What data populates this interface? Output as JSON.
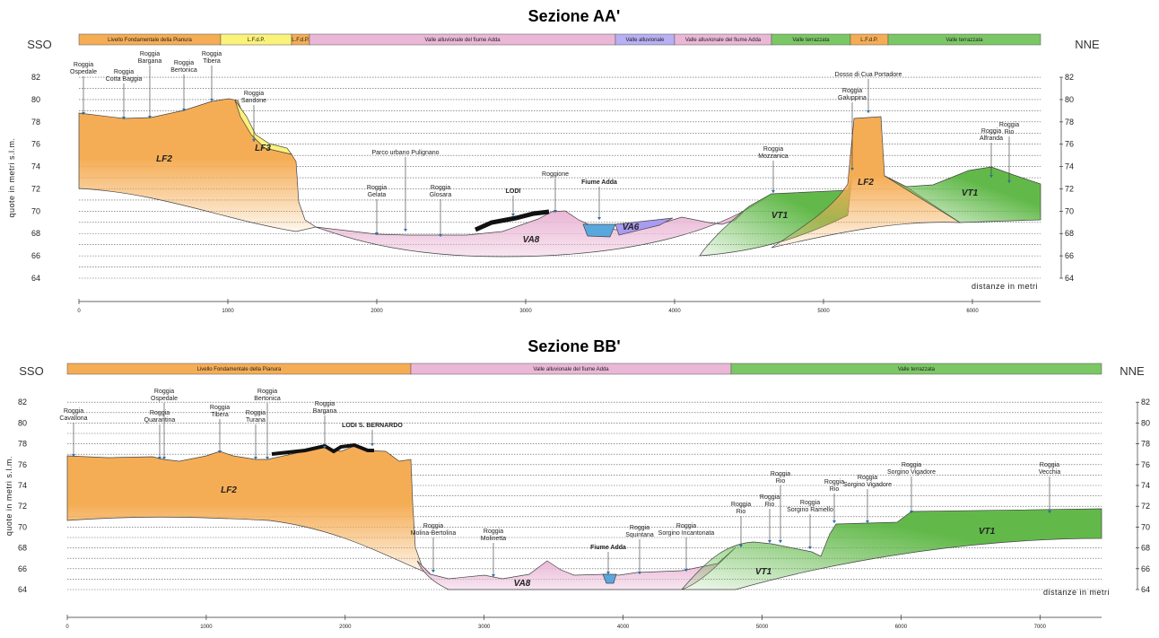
{
  "sections": [
    {
      "title": "Sezione AA'",
      "left_label": "SSO",
      "right_label": "NNE",
      "y_axis_label": "quote in metri s.l.m.",
      "x_axis_label": "distanze in metri",
      "bands": [
        "Livello Fondamentale della Pianura",
        "L.F.d.P.",
        "L.F.d.P.",
        "Valle alluvionale del fiume Adda",
        "Valle alluvionale",
        "Valle alluvionale del fiume Adda",
        "Valle terrazzata",
        "L.F.d.P.",
        "Valle terrazzata"
      ],
      "yticks": [
        64,
        66,
        68,
        70,
        72,
        74,
        76,
        78,
        80,
        82
      ],
      "xticks": [
        0,
        1000,
        2000,
        3000,
        4000,
        5000,
        6000
      ],
      "units": [
        "LF2",
        "LF3",
        "VA8",
        "VA6",
        "VT1",
        "LF2",
        "VT1"
      ],
      "annotations": [
        {
          "lines": [
            "Roggia",
            "Ospedale"
          ]
        },
        {
          "lines": [
            "Roggia",
            "Cotta Baggia"
          ]
        },
        {
          "lines": [
            "Roggia",
            "Bargana"
          ]
        },
        {
          "lines": [
            "Roggia",
            "Bertonica"
          ]
        },
        {
          "lines": [
            "Roggia",
            "Tibera"
          ]
        },
        {
          "lines": [
            "Roggia",
            "Sandone"
          ]
        },
        {
          "lines": [
            "Parco urbano Pulignano"
          ]
        },
        {
          "lines": [
            "Roggia",
            "Gelata"
          ]
        },
        {
          "lines": [
            "Roggia",
            "Glosara"
          ]
        },
        {
          "lines": [
            "LODI"
          ]
        },
        {
          "lines": [
            "Roggione"
          ]
        },
        {
          "lines": [
            "Fiume Adda"
          ]
        },
        {
          "lines": [
            "Roggia",
            "Mozzanica"
          ]
        },
        {
          "lines": [
            "Roggia",
            "Galuppina"
          ]
        },
        {
          "lines": [
            "Dosso di Cua Portadore"
          ]
        },
        {
          "lines": [
            "Roggia",
            "Alfranda"
          ]
        },
        {
          "lines": [
            "Roggia",
            "Rio"
          ]
        }
      ]
    },
    {
      "title": "Sezione BB'",
      "left_label": "SSO",
      "right_label": "NNE",
      "y_axis_label": "quote in metri s.l.m.",
      "x_axis_label": "distanze in metri",
      "bands": [
        "Livello Fondamentale della Pianura",
        "Valle alluvionale del fiume Adda",
        "Valle terrazzata"
      ],
      "yticks": [
        64,
        66,
        68,
        70,
        72,
        74,
        76,
        78,
        80,
        82
      ],
      "xticks": [
        0,
        1000,
        2000,
        3000,
        4000,
        5000,
        6000,
        7000
      ],
      "units": [
        "LF2",
        "VA8",
        "VT1",
        "VT1"
      ],
      "annotations": [
        {
          "lines": [
            "Roggia",
            "Cavallona"
          ]
        },
        {
          "lines": [
            "Roggia",
            "Ospedale"
          ]
        },
        {
          "lines": [
            "Roggia",
            "Quarantina"
          ]
        },
        {
          "lines": [
            "Roggia",
            "Tibera"
          ]
        },
        {
          "lines": [
            "Roggia",
            "Bertonica"
          ]
        },
        {
          "lines": [
            "Roggia",
            "Turana"
          ]
        },
        {
          "lines": [
            "Roggia",
            "Bargana"
          ]
        },
        {
          "lines": [
            "LODI S. BERNARDO"
          ]
        },
        {
          "lines": [
            "Roggia",
            "Molina-Bertolina"
          ]
        },
        {
          "lines": [
            "Roggia",
            "Molinetta"
          ]
        },
        {
          "lines": [
            "Fiume Adda"
          ]
        },
        {
          "lines": [
            "Roggia",
            "Squintana"
          ]
        },
        {
          "lines": [
            "Roggia",
            "Sorgino Incantonata"
          ]
        },
        {
          "lines": [
            "Roggia",
            "Rio"
          ]
        },
        {
          "lines": [
            "Roggia",
            "Rio"
          ]
        },
        {
          "lines": [
            "Roggia",
            "Rio"
          ]
        },
        {
          "lines": [
            "Roggia",
            "Sorgino Ramello"
          ]
        },
        {
          "lines": [
            "Roggia",
            "Rio"
          ]
        },
        {
          "lines": [
            "Roggia",
            "Sorgino Vigadore"
          ]
        },
        {
          "lines": [
            "Roggia",
            "Sorgino Vigadore"
          ]
        },
        {
          "lines": [
            "Roggia",
            "Vecchia"
          ]
        }
      ]
    }
  ]
}
